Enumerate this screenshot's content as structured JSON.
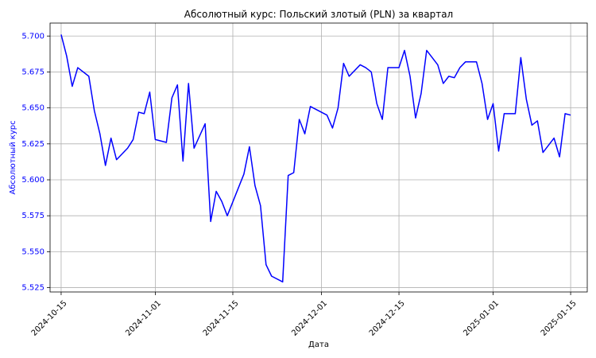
{
  "chart_data": {
    "type": "line",
    "title": "Абсолютный курс: Польский злотый (PLN) за квартал",
    "xlabel": "Дата",
    "ylabel": "Абсолютный курс",
    "xlim": [
      "2024-10-13",
      "2025-01-18"
    ],
    "ylim": [
      5.522,
      5.709
    ],
    "grid": true,
    "legend": "none",
    "line_color": "#0000ff",
    "ylabel_color": "#0000ff",
    "ytick_color": "#0000ff",
    "x_ticks": [
      "2024-10-15",
      "2024-11-01",
      "2024-11-15",
      "2024-12-01",
      "2024-12-15",
      "2025-01-01",
      "2025-01-15"
    ],
    "y_ticks": [
      5.525,
      5.55,
      5.575,
      5.6,
      5.625,
      5.65,
      5.675,
      5.7
    ],
    "y_tick_labels": [
      "5.525",
      "5.550",
      "5.575",
      "5.600",
      "5.625",
      "5.650",
      "5.675",
      "5.700"
    ],
    "series": [
      {
        "x": [
          "2024-10-15",
          "2024-10-16",
          "2024-10-17",
          "2024-10-18",
          "2024-10-20",
          "2024-10-21",
          "2024-10-22",
          "2024-10-23",
          "2024-10-24",
          "2024-10-25",
          "2024-10-27",
          "2024-10-28",
          "2024-10-29",
          "2024-10-30",
          "2024-10-31",
          "2024-11-01",
          "2024-11-03",
          "2024-11-04",
          "2024-11-05",
          "2024-11-06",
          "2024-11-07",
          "2024-11-08",
          "2024-11-10",
          "2024-11-11",
          "2024-11-12",
          "2024-11-13",
          "2024-11-14",
          "2024-11-17",
          "2024-11-18",
          "2024-11-19",
          "2024-11-20",
          "2024-11-21",
          "2024-11-22",
          "2024-11-24",
          "2024-11-25",
          "2024-11-26",
          "2024-11-27",
          "2024-11-28",
          "2024-11-29",
          "2024-12-01",
          "2024-12-02",
          "2024-12-03",
          "2024-12-04",
          "2024-12-05",
          "2024-12-06",
          "2024-12-08",
          "2024-12-09",
          "2024-12-10",
          "2024-12-11",
          "2024-12-12",
          "2024-12-13",
          "2024-12-15",
          "2024-12-16",
          "2024-12-17",
          "2024-12-18",
          "2024-12-19",
          "2024-12-20",
          "2024-12-22",
          "2024-12-23",
          "2024-12-24",
          "2024-12-25",
          "2024-12-26",
          "2024-12-27",
          "2024-12-29",
          "2024-12-30",
          "2024-12-31",
          "2025-01-01",
          "2025-01-02",
          "2025-01-03",
          "2025-01-05",
          "2025-01-06",
          "2025-01-07",
          "2025-01-08",
          "2025-01-09",
          "2025-01-10",
          "2025-01-12",
          "2025-01-13",
          "2025-01-14",
          "2025-01-15"
        ],
        "values": [
          5.701,
          5.686,
          5.665,
          5.678,
          5.672,
          5.648,
          5.632,
          5.61,
          5.629,
          5.614,
          5.622,
          5.628,
          5.647,
          5.646,
          5.661,
          5.628,
          5.626,
          5.657,
          5.666,
          5.613,
          5.667,
          5.622,
          5.639,
          5.571,
          5.592,
          5.585,
          5.575,
          5.604,
          5.623,
          5.596,
          5.582,
          5.541,
          5.533,
          5.529,
          5.603,
          5.605,
          5.642,
          5.632,
          5.651,
          5.647,
          5.645,
          5.636,
          5.65,
          5.681,
          5.672,
          5.68,
          5.678,
          5.675,
          5.653,
          5.642,
          5.678,
          5.678,
          5.69,
          5.672,
          5.643,
          5.66,
          5.69,
          5.68,
          5.667,
          5.672,
          5.671,
          5.678,
          5.682,
          5.682,
          5.667,
          5.642,
          5.653,
          5.62,
          5.646,
          5.646,
          5.685,
          5.656,
          5.638,
          5.641,
          5.619,
          5.629,
          5.616,
          5.646,
          5.645
        ]
      }
    ]
  }
}
